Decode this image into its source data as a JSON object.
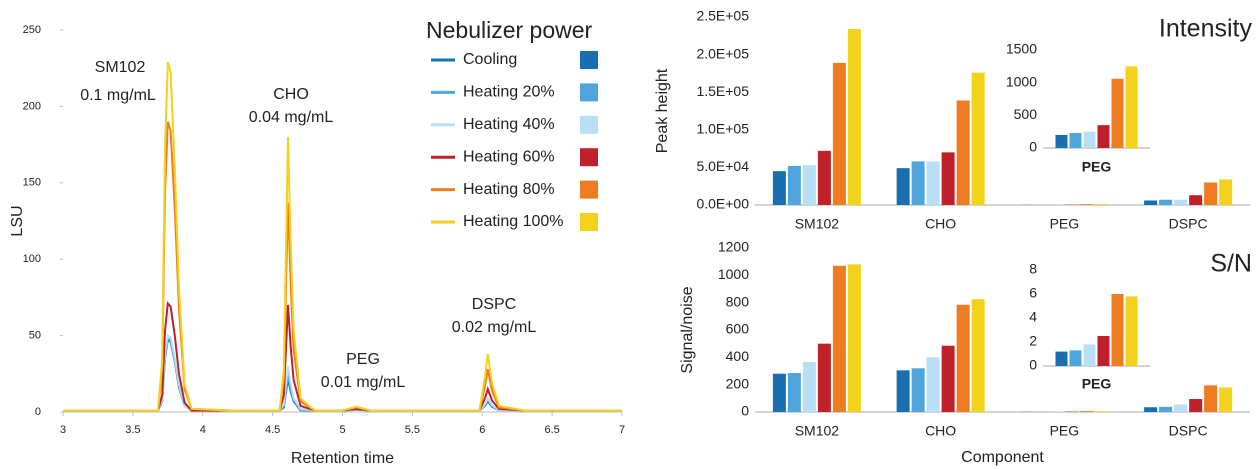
{
  "chart_data": [
    {
      "type": "line",
      "xlabel": "Retention time",
      "ylabel": "LSU",
      "legend_title": "Nebulizer power",
      "annotations": [
        "SM102",
        "0.1 mg/mL",
        "CHO",
        "0.04 mg/mL",
        "PEG",
        "0.01 mg/mL",
        "DSPC",
        "0.02 mg/mL"
      ],
      "x": [
        3,
        3.5,
        3.68,
        3.71,
        3.73,
        3.75,
        3.77,
        3.8,
        3.83,
        3.87,
        3.92,
        4.2,
        4.55,
        4.58,
        4.61,
        4.63,
        4.65,
        4.7,
        4.8,
        5.0,
        5.1,
        5.2,
        5.9,
        5.98,
        6.02,
        6.04,
        6.07,
        6.12,
        6.3,
        7
      ],
      "xlim": [
        3,
        7
      ],
      "xticks": [
        3,
        3.5,
        4,
        4.5,
        5,
        5.5,
        6,
        6.5,
        7
      ],
      "ylim": [
        0,
        250
      ],
      "yticks": [
        0,
        50,
        100,
        150,
        200,
        250
      ],
      "series": [
        {
          "name": "Cooling",
          "color": "#1a6fb0",
          "values": [
            1,
            1,
            1,
            7,
            35,
            47,
            46,
            33,
            16,
            4,
            1,
            1,
            1,
            3,
            22,
            13,
            7,
            1,
            1,
            1,
            1.5,
            1,
            1,
            1,
            4,
            7,
            3.5,
            1,
            1,
            1
          ]
        },
        {
          "name": "Heating 20%",
          "color": "#4ea6dc",
          "values": [
            1,
            1,
            1,
            7,
            36,
            48,
            47,
            34,
            17,
            4,
            1,
            1,
            1,
            4,
            25,
            15,
            8,
            1,
            1,
            1,
            1.7,
            1,
            1,
            1,
            5,
            8,
            4,
            1,
            1,
            1
          ]
        },
        {
          "name": "Heating 40%",
          "color": "#b8dff5",
          "values": [
            1,
            1,
            1,
            8,
            38,
            50,
            49,
            35,
            18,
            4,
            1,
            1,
            1,
            5,
            30,
            18,
            9,
            2,
            1,
            1,
            1.8,
            1,
            1,
            1,
            5,
            9,
            4.5,
            1,
            1,
            1
          ]
        },
        {
          "name": "Heating 60%",
          "color": "#c0202a",
          "values": [
            1,
            1,
            1,
            11,
            53,
            71,
            69,
            50,
            25,
            6,
            1,
            1,
            1,
            11,
            70,
            42,
            21,
            4,
            1,
            1,
            2,
            1,
            1,
            1,
            9,
            15,
            7.5,
            2,
            1,
            1
          ]
        },
        {
          "name": "Heating 80%",
          "color": "#ee7d22",
          "values": [
            1,
            1,
            1,
            29,
            143,
            190,
            184,
            133,
            67,
            15,
            2,
            1,
            1,
            21,
            137,
            82,
            41,
            7,
            1,
            1,
            3,
            1,
            1,
            1,
            17,
            28,
            14,
            3,
            1,
            1
          ]
        },
        {
          "name": "Heating 100%",
          "color": "#f2d21a",
          "values": [
            1,
            1,
            1,
            34,
            172,
            229,
            222,
            160,
            80,
            18,
            2,
            1,
            1,
            27,
            180,
            108,
            54,
            9,
            1,
            1,
            3.5,
            1,
            1,
            1,
            23,
            38,
            19,
            4,
            1,
            1
          ]
        }
      ]
    },
    {
      "type": "bar",
      "ylabel": "Peak height",
      "annotation": "Intensity",
      "categories": [
        "SM102",
        "CHO",
        "PEG",
        "DSPC"
      ],
      "ylim": [
        0,
        250000
      ],
      "yticks": [
        {
          "value": 0,
          "label": "0.0E+00"
        },
        {
          "value": 50000,
          "label": "5.0E+04"
        },
        {
          "value": 100000,
          "label": "1.0E+05"
        },
        {
          "value": 150000,
          "label": "1.5E+05"
        },
        {
          "value": 200000,
          "label": "2.0E+05"
        },
        {
          "value": 250000,
          "label": "2.5E+05"
        }
      ],
      "series": [
        {
          "color": "#1a6fb0",
          "values": [
            45000,
            49000,
            200,
            6000
          ]
        },
        {
          "color": "#4ea6dc",
          "values": [
            52000,
            58000,
            230,
            7000
          ]
        },
        {
          "color": "#b8dff5",
          "values": [
            53000,
            58000,
            250,
            7000
          ]
        },
        {
          "color": "#c0202a",
          "values": [
            72000,
            70000,
            350,
            13000
          ]
        },
        {
          "color": "#ee7d22",
          "values": [
            189000,
            139000,
            1060,
            30000
          ]
        },
        {
          "color": "#f2d21a",
          "values": [
            234000,
            176000,
            1250,
            34000
          ]
        }
      ]
    },
    {
      "type": "bar",
      "categories": [
        "PEG"
      ],
      "ylim": [
        0,
        1500
      ],
      "yticks": [
        0,
        500,
        1000,
        1500
      ],
      "series": [
        {
          "color": "#1a6fb0",
          "values": [
            200
          ]
        },
        {
          "color": "#4ea6dc",
          "values": [
            230
          ]
        },
        {
          "color": "#b8dff5",
          "values": [
            250
          ]
        },
        {
          "color": "#c0202a",
          "values": [
            350
          ]
        },
        {
          "color": "#ee7d22",
          "values": [
            1060
          ]
        },
        {
          "color": "#f2d21a",
          "values": [
            1250
          ]
        }
      ]
    },
    {
      "type": "bar",
      "xlabel": "Component",
      "ylabel": "Signal/noise",
      "annotation": "S/N",
      "categories": [
        "SM102",
        "CHO",
        "PEG",
        "DSPC"
      ],
      "ylim": [
        0,
        1200
      ],
      "yticks": [
        0,
        200,
        400,
        600,
        800,
        1000,
        1200
      ],
      "series": [
        {
          "color": "#1a6fb0",
          "values": [
            280,
            305,
            1.2,
            35
          ]
        },
        {
          "color": "#4ea6dc",
          "values": [
            285,
            320,
            1.3,
            38
          ]
        },
        {
          "color": "#b8dff5",
          "values": [
            365,
            400,
            1.8,
            55
          ]
        },
        {
          "color": "#c0202a",
          "values": [
            500,
            485,
            2.5,
            95
          ]
        },
        {
          "color": "#ee7d22",
          "values": [
            1070,
            785,
            6,
            195
          ]
        },
        {
          "color": "#f2d21a",
          "values": [
            1080,
            825,
            5.8,
            180
          ]
        }
      ]
    },
    {
      "type": "bar",
      "categories": [
        "PEG"
      ],
      "ylim": [
        0,
        8
      ],
      "yticks": [
        0,
        2,
        4,
        6,
        8
      ],
      "series": [
        {
          "color": "#1a6fb0",
          "values": [
            1.2
          ]
        },
        {
          "color": "#4ea6dc",
          "values": [
            1.3
          ]
        },
        {
          "color": "#b8dff5",
          "values": [
            1.8
          ]
        },
        {
          "color": "#c0202a",
          "values": [
            2.5
          ]
        },
        {
          "color": "#ee7d22",
          "values": [
            6
          ]
        },
        {
          "color": "#f2d21a",
          "values": [
            5.8
          ]
        }
      ]
    }
  ]
}
